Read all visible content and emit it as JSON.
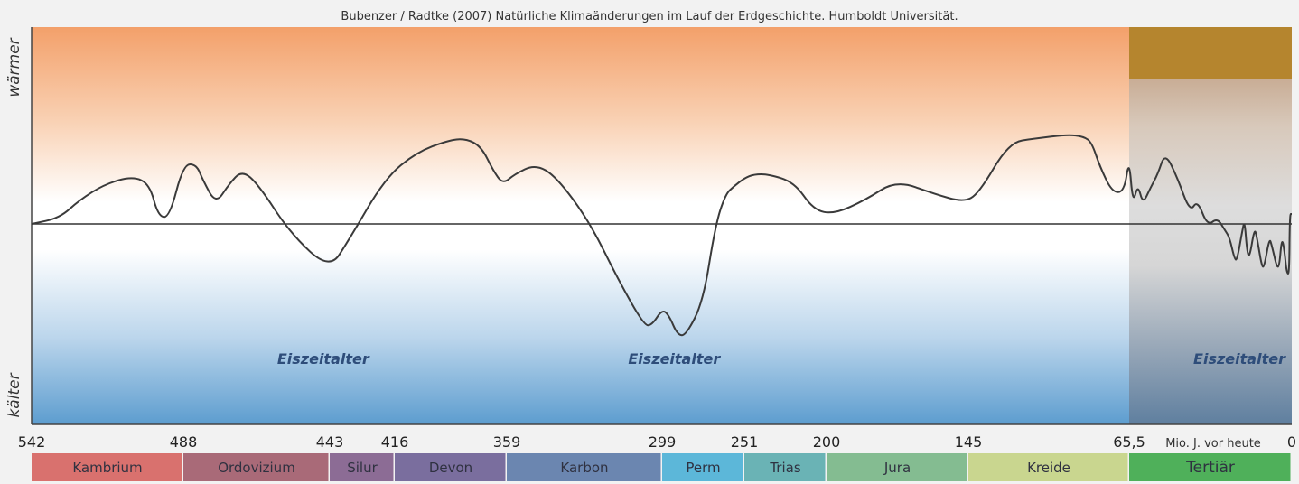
{
  "chart_data": {
    "type": "line",
    "title": "Bubenzer / Radtke (2007) Natürliche Klimaänderungen im Lauf der Erdgeschichte. Humboldt Universität.",
    "ylabel_top": "wärmer",
    "ylabel_bottom": "kälter",
    "xlabel": "Mio. J. vor heute",
    "x_ticks": [
      "542",
      "488",
      "443",
      "416",
      "359",
      "299",
      "251",
      "200",
      "145",
      "65,5",
      "0"
    ],
    "x_tick_values": [
      542,
      488,
      443,
      416,
      359,
      299,
      251,
      200,
      145,
      65.5,
      0
    ],
    "periods": [
      {
        "name": "Kambrium",
        "start": 542,
        "end": 488,
        "color": "#d9716e"
      },
      {
        "name": "Ordovizium",
        "start": 488,
        "end": 443,
        "color": "#a96a78"
      },
      {
        "name": "Silur",
        "start": 443,
        "end": 416,
        "color": "#8c6c95"
      },
      {
        "name": "Devon",
        "start": 416,
        "end": 359,
        "color": "#7a6e9e"
      },
      {
        "name": "Karbon",
        "start": 359,
        "end": 299,
        "color": "#6b86b0"
      },
      {
        "name": "Perm",
        "start": 299,
        "end": 251,
        "color": "#5cb7d9"
      },
      {
        "name": "Trias",
        "start": 251,
        "end": 200,
        "color": "#6ab3b5"
      },
      {
        "name": "Jura",
        "start": 200,
        "end": 145,
        "color": "#84bc91"
      },
      {
        "name": "Kreide",
        "start": 145,
        "end": 65.5,
        "color": "#c9d68f"
      },
      {
        "name": "Tertiär",
        "start": 65.5,
        "end": 0,
        "color": "#4fb05a"
      }
    ],
    "annotations": [
      {
        "text": "Eiszeitalter",
        "x": 445
      },
      {
        "text": "Eiszeitalter",
        "x": 292
      },
      {
        "text": "Eiszeitalter",
        "x": 2
      }
    ],
    "ylim": [
      -1,
      1
    ],
    "grid": false,
    "series": [
      {
        "x": [
          542,
          532,
          525,
          516,
          506,
          500,
          497,
          493,
          488,
          484,
          482,
          478,
          474,
          470,
          465,
          455,
          443,
          435,
          420,
          405,
          389,
          380,
          372,
          366,
          361,
          356,
          348,
          340,
          327,
          316,
          306,
          303,
          299,
          295,
          290,
          285,
          275,
          268,
          262,
          257,
          251,
          245,
          236,
          220,
          208,
          197,
          185,
          173,
          158,
          147,
          140,
          125,
          112,
          96,
          88,
          84,
          80,
          74,
          68,
          65.5,
          64,
          62,
          60,
          57,
          54,
          51,
          46,
          41,
          38,
          34,
          30,
          27,
          25,
          23,
          22,
          20,
          19,
          18,
          17,
          15,
          14,
          12,
          11,
          9,
          8,
          6,
          5,
          4,
          3,
          2,
          1,
          0.8,
          0
        ],
        "y": [
          0.0,
          0.03,
          0.12,
          0.2,
          0.24,
          0.2,
          0.04,
          0.03,
          0.3,
          0.3,
          0.22,
          0.1,
          0.2,
          0.27,
          0.2,
          -0.05,
          -0.23,
          -0.08,
          0.23,
          0.36,
          0.42,
          0.43,
          0.39,
          0.27,
          0.2,
          0.25,
          0.3,
          0.24,
          0.01,
          -0.28,
          -0.51,
          -0.51,
          -0.43,
          -0.46,
          -0.56,
          -0.56,
          -0.39,
          -0.01,
          0.15,
          0.19,
          0.23,
          0.25,
          0.25,
          0.21,
          0.07,
          0.05,
          0.12,
          0.22,
          0.15,
          0.11,
          0.15,
          0.41,
          0.43,
          0.45,
          0.44,
          0.41,
          0.29,
          0.16,
          0.16,
          0.33,
          0.1,
          0.2,
          0.1,
          0.18,
          0.25,
          0.36,
          0.23,
          0.06,
          0.12,
          -0.01,
          0.03,
          -0.03,
          -0.07,
          -0.18,
          -0.18,
          -0.04,
          0.02,
          -0.14,
          -0.17,
          -0.02,
          -0.07,
          -0.22,
          -0.21,
          -0.07,
          -0.11,
          -0.22,
          -0.21,
          -0.07,
          -0.13,
          -0.25,
          -0.25,
          0.05,
          0.05
        ]
      }
    ]
  }
}
